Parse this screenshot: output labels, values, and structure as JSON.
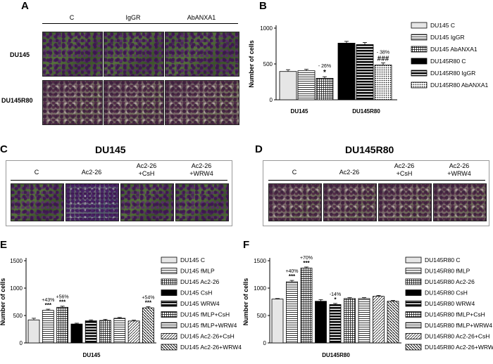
{
  "panels": {
    "A": {
      "letter": "A",
      "cols": [
        "C",
        "IgGR",
        "AbANXA1"
      ],
      "rows": [
        "DU145",
        "DU145R80"
      ]
    },
    "C": {
      "letter": "C",
      "title": "DU145",
      "cols": [
        "C",
        "Ac2-26",
        "Ac2-26\n+CsH",
        "Ac2-26\n+WRW4"
      ]
    },
    "D": {
      "letter": "D",
      "title": "DU145R80",
      "cols": [
        "C",
        "Ac2-26",
        "Ac2-26\n+CsH",
        "Ac2-26\n+WRW4"
      ]
    }
  },
  "chart_data": [
    {
      "id": "B",
      "letter": "B",
      "type": "bar",
      "ylabel": "Number of cells",
      "ylim": [
        0,
        1000
      ],
      "yticks": [
        0,
        500,
        1000
      ],
      "groups": [
        "DU145",
        "DU145R80"
      ],
      "series": [
        {
          "name": "DU145 C",
          "value": 395,
          "err": 25,
          "pattern": "white",
          "group": 0
        },
        {
          "name": "DU145 IgGR",
          "value": 405,
          "err": 20,
          "pattern": "hline",
          "group": 0
        },
        {
          "name": "DU145 AbANXA1",
          "value": 300,
          "err": 22,
          "pattern": "grid",
          "group": 0
        },
        {
          "name": "DU145R80 C",
          "value": 790,
          "err": 25,
          "pattern": "black",
          "group": 1
        },
        {
          "name": "DU145R80 IgGR",
          "value": 770,
          "err": 30,
          "pattern": "hthick",
          "group": 1
        },
        {
          "name": "DU145R80 AbANXA1",
          "value": 485,
          "err": 30,
          "pattern": "dot",
          "group": 1
        }
      ],
      "annotations": [
        {
          "bar": 2,
          "pct": "- 26%",
          "sig": "*"
        },
        {
          "bar": 5,
          "pct": "- 38%",
          "sig": "###"
        }
      ]
    },
    {
      "id": "E",
      "letter": "E",
      "type": "bar",
      "ylabel": "Number of cells",
      "xlabel": "DU145",
      "ylim": [
        0,
        1500
      ],
      "yticks": [
        0,
        500,
        1000,
        1500
      ],
      "series": [
        {
          "name": "DU145 C",
          "value": 420,
          "err": 30,
          "pattern": "white"
        },
        {
          "name": "DU145 fMLP",
          "value": 595,
          "err": 20,
          "pattern": "hline"
        },
        {
          "name": "DU145 Ac2-26",
          "value": 650,
          "err": 20,
          "pattern": "grid"
        },
        {
          "name": "DU145 CsH",
          "value": 345,
          "err": 15,
          "pattern": "black"
        },
        {
          "name": "DU145 WRW4",
          "value": 405,
          "err": 15,
          "pattern": "hthick"
        },
        {
          "name": "DU145 fMLP+CsH",
          "value": 410,
          "err": 20,
          "pattern": "grid"
        },
        {
          "name": "DU145 fMLP+WRW4",
          "value": 450,
          "err": 15,
          "pattern": "hline"
        },
        {
          "name": "DU145 Ac2-26+CsH",
          "value": 400,
          "err": 15,
          "pattern": "diag"
        },
        {
          "name": "DU145 Ac2-26+WRW4",
          "value": 640,
          "err": 20,
          "pattern": "rdiag"
        }
      ],
      "annotations": [
        {
          "bar": 1,
          "pct": "+43%",
          "sig": "***"
        },
        {
          "bar": 2,
          "pct": "+56%",
          "sig": "***"
        },
        {
          "bar": 8,
          "pct": "+54%",
          "sig": "***"
        }
      ]
    },
    {
      "id": "F",
      "letter": "F",
      "type": "bar",
      "ylabel": "Number of cells",
      "xlabel": "DU145R80",
      "ylim": [
        0,
        1500
      ],
      "yticks": [
        0,
        500,
        1000,
        1500
      ],
      "series": [
        {
          "name": "DU145R80 C",
          "value": 800,
          "err": 10,
          "pattern": "white"
        },
        {
          "name": "DU145R80 fMLP",
          "value": 1115,
          "err": 25,
          "pattern": "hline"
        },
        {
          "name": "DU145R80 Ac2-26",
          "value": 1365,
          "err": 20,
          "pattern": "grid"
        },
        {
          "name": "DU145R80 CsH",
          "value": 760,
          "err": 30,
          "pattern": "black"
        },
        {
          "name": "DU145R80 WRW4",
          "value": 700,
          "err": 20,
          "pattern": "hthick"
        },
        {
          "name": "DU145R80 fMLP+CsH",
          "value": 810,
          "err": 15,
          "pattern": "grid"
        },
        {
          "name": "DU145R80 fMLP+WRW4",
          "value": 810,
          "err": 15,
          "pattern": "hline"
        },
        {
          "name": "DU145R80 Ac2-26+CsH",
          "value": 850,
          "err": 15,
          "pattern": "diag"
        },
        {
          "name": "DU145R80 Ac2-26+WRW4",
          "value": 760,
          "err": 15,
          "pattern": "rdiag"
        }
      ],
      "annotations": [
        {
          "bar": 1,
          "pct": "+40%",
          "sig": "***"
        },
        {
          "bar": 2,
          "pct": "+70%",
          "sig": "***"
        },
        {
          "bar": 4,
          "pct": "-14%",
          "sig": "*"
        }
      ]
    }
  ]
}
